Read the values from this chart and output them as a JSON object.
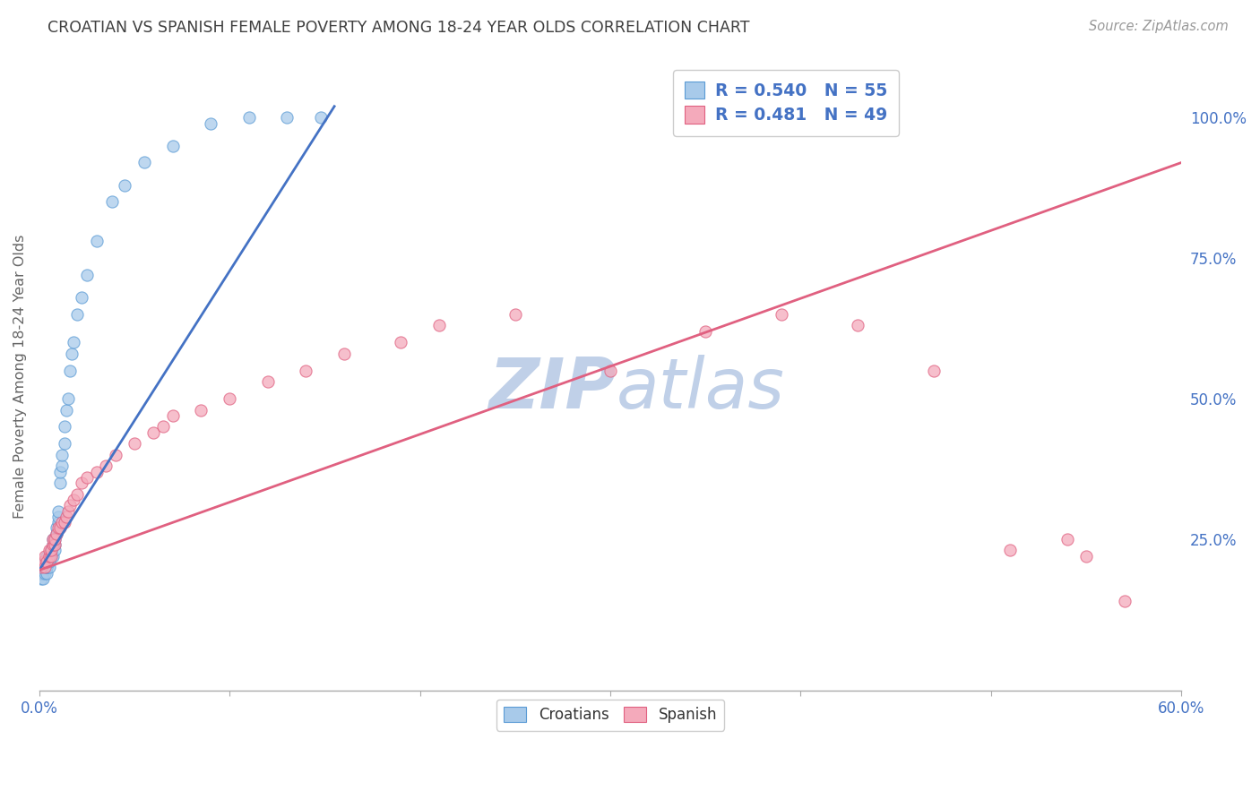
{
  "title": "CROATIAN VS SPANISH FEMALE POVERTY AMONG 18-24 YEAR OLDS CORRELATION CHART",
  "source": "Source: ZipAtlas.com",
  "ylabel": "Female Poverty Among 18-24 Year Olds",
  "xlim": [
    0.0,
    0.6
  ],
  "ylim": [
    -0.02,
    1.1
  ],
  "xticks": [
    0.0,
    0.1,
    0.2,
    0.3,
    0.4,
    0.5,
    0.6
  ],
  "xticklabels": [
    "0.0%",
    "",
    "",
    "",
    "",
    "",
    "60.0%"
  ],
  "yticks_right": [
    0.25,
    0.5,
    0.75,
    1.0
  ],
  "ytick_right_labels": [
    "25.0%",
    "50.0%",
    "75.0%",
    "100.0%"
  ],
  "croatian_R": 0.54,
  "croatian_N": 55,
  "spanish_R": 0.481,
  "spanish_N": 49,
  "color_croatian_fill": "#A8CAEA",
  "color_croatian_edge": "#5B9BD5",
  "color_spanish_fill": "#F4AABB",
  "color_spanish_edge": "#E06080",
  "color_line_croatian": "#4472C4",
  "color_line_spanish": "#E06080",
  "color_text_blue": "#4472C4",
  "color_title": "#404040",
  "watermark_zip_color": "#C0D0E8",
  "watermark_atlas_color": "#C0D0E8",
  "background_color": "#FFFFFF",
  "grid_color": "#CCCCCC",
  "cr_line_x0": 0.0,
  "cr_line_y0": 0.195,
  "cr_line_x1": 0.155,
  "cr_line_y1": 1.02,
  "sp_line_x0": 0.0,
  "sp_line_y0": 0.195,
  "sp_line_x1": 0.6,
  "sp_line_y1": 0.92,
  "croatian_x": [
    0.001,
    0.001,
    0.002,
    0.002,
    0.002,
    0.003,
    0.003,
    0.003,
    0.003,
    0.004,
    0.004,
    0.004,
    0.004,
    0.004,
    0.005,
    0.005,
    0.005,
    0.005,
    0.006,
    0.006,
    0.006,
    0.007,
    0.007,
    0.007,
    0.008,
    0.008,
    0.008,
    0.009,
    0.009,
    0.01,
    0.01,
    0.01,
    0.011,
    0.011,
    0.012,
    0.012,
    0.013,
    0.013,
    0.014,
    0.015,
    0.016,
    0.017,
    0.018,
    0.02,
    0.022,
    0.025,
    0.03,
    0.038,
    0.045,
    0.055,
    0.07,
    0.09,
    0.11,
    0.13,
    0.148
  ],
  "croatian_y": [
    0.18,
    0.19,
    0.19,
    0.2,
    0.18,
    0.2,
    0.21,
    0.19,
    0.2,
    0.19,
    0.2,
    0.2,
    0.21,
    0.22,
    0.22,
    0.2,
    0.21,
    0.22,
    0.22,
    0.23,
    0.23,
    0.22,
    0.24,
    0.25,
    0.24,
    0.25,
    0.23,
    0.26,
    0.27,
    0.28,
    0.29,
    0.3,
    0.35,
    0.37,
    0.38,
    0.4,
    0.42,
    0.45,
    0.48,
    0.5,
    0.55,
    0.58,
    0.6,
    0.65,
    0.68,
    0.72,
    0.78,
    0.85,
    0.88,
    0.92,
    0.95,
    0.99,
    1.0,
    1.0,
    1.0
  ],
  "spanish_x": [
    0.001,
    0.002,
    0.003,
    0.003,
    0.004,
    0.005,
    0.005,
    0.006,
    0.006,
    0.007,
    0.007,
    0.008,
    0.008,
    0.009,
    0.01,
    0.011,
    0.012,
    0.013,
    0.014,
    0.015,
    0.016,
    0.018,
    0.02,
    0.022,
    0.025,
    0.03,
    0.035,
    0.04,
    0.05,
    0.06,
    0.065,
    0.07,
    0.085,
    0.1,
    0.12,
    0.14,
    0.16,
    0.19,
    0.21,
    0.25,
    0.3,
    0.35,
    0.39,
    0.43,
    0.47,
    0.51,
    0.54,
    0.55,
    0.57
  ],
  "spanish_y": [
    0.2,
    0.21,
    0.2,
    0.22,
    0.21,
    0.22,
    0.23,
    0.22,
    0.23,
    0.24,
    0.25,
    0.24,
    0.25,
    0.26,
    0.27,
    0.27,
    0.28,
    0.28,
    0.29,
    0.3,
    0.31,
    0.32,
    0.33,
    0.35,
    0.36,
    0.37,
    0.38,
    0.4,
    0.42,
    0.44,
    0.45,
    0.47,
    0.48,
    0.5,
    0.53,
    0.55,
    0.58,
    0.6,
    0.63,
    0.65,
    0.55,
    0.62,
    0.65,
    0.63,
    0.55,
    0.23,
    0.25,
    0.22,
    0.14
  ]
}
